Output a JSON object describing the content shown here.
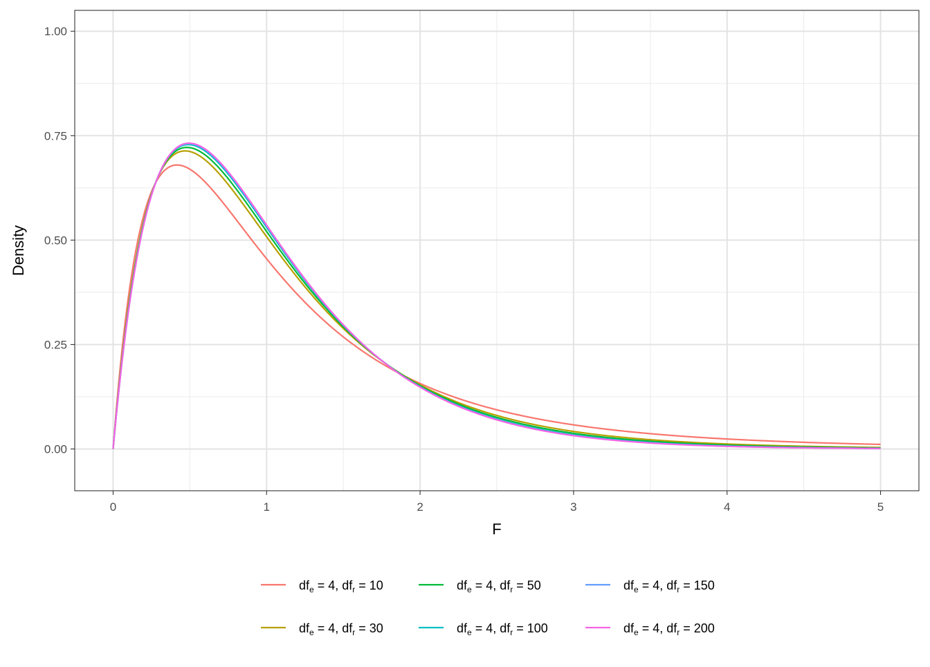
{
  "chart_data": {
    "type": "line",
    "title": "",
    "xlabel": "F",
    "ylabel": "Density",
    "xlim": [
      -0.25,
      5.25
    ],
    "ylim": [
      -0.1,
      1.05
    ],
    "x_ticks": [
      "0",
      "1",
      "2",
      "3",
      "4",
      "5"
    ],
    "y_ticks": [
      "0.00",
      "0.25",
      "0.50",
      "0.75",
      "1.00"
    ],
    "grid": true,
    "legend_position": "bottom",
    "distribution": "F",
    "x_range": [
      0,
      5
    ],
    "series": [
      {
        "df1": 4,
        "df2": 10,
        "color": "#F8766D",
        "label": {
          "a": "df",
          "a_sub": "e",
          "mid": " = 4, ",
          "b": "df",
          "b_sub": "r",
          "tail": " = 10"
        }
      },
      {
        "df1": 4,
        "df2": 30,
        "color": "#B79F00",
        "label": {
          "a": "df",
          "a_sub": "e",
          "mid": " = 4, ",
          "b": "df",
          "b_sub": "r",
          "tail": " = 30"
        }
      },
      {
        "df1": 4,
        "df2": 50,
        "color": "#00BA38",
        "label": {
          "a": "df",
          "a_sub": "e",
          "mid": " = 4, ",
          "b": "df",
          "b_sub": "r",
          "tail": " = 50"
        }
      },
      {
        "df1": 4,
        "df2": 100,
        "color": "#00BFC4",
        "label": {
          "a": "df",
          "a_sub": "e",
          "mid": " = 4, ",
          "b": "df",
          "b_sub": "r",
          "tail": " = 100"
        }
      },
      {
        "df1": 4,
        "df2": 150,
        "color": "#619CFF",
        "label": {
          "a": "df",
          "a_sub": "e",
          "mid": " = 4, ",
          "b": "df",
          "b_sub": "r",
          "tail": " = 150"
        }
      },
      {
        "df1": 4,
        "df2": 200,
        "color": "#F564E3",
        "label": {
          "a": "df",
          "a_sub": "e",
          "mid": " = 4, ",
          "b": "df",
          "b_sub": "r",
          "tail": " = 200"
        }
      }
    ]
  }
}
